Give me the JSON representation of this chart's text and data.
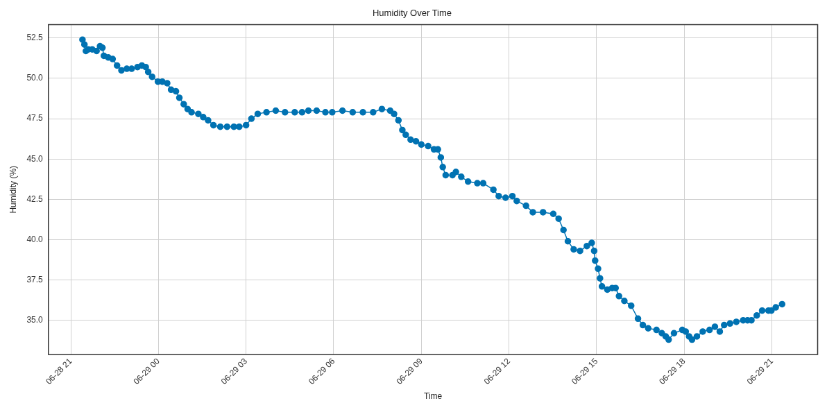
{
  "chart_data": {
    "type": "line",
    "title": "Humidity Over Time",
    "xlabel": "Time",
    "ylabel": "Humidity (%)",
    "x": [
      "--06-28T21:24",
      "--06-28T21:28",
      "--06-28T21:31",
      "--06-28T21:36",
      "--06-28T21:44",
      "--06-28T21:53",
      "--06-28T22:00",
      "--06-28T22:05",
      "--06-28T22:08",
      "--06-28T22:17",
      "--06-28T22:26",
      "--06-28T22:35",
      "--06-28T22:44",
      "--06-28T22:55",
      "--06-28T23:05",
      "--06-28T23:17",
      "--06-28T23:26",
      "--06-28T23:34",
      "--06-28T23:39",
      "--06-28T23:47",
      "--06-28T23:59",
      "--06-29T00:08",
      "--06-29T00:18",
      "--06-29T00:26",
      "--06-29T00:36",
      "--06-29T00:43",
      "--06-29T00:52",
      "--06-29T01:00",
      "--06-29T01:08",
      "--06-29T01:22",
      "--06-29T01:32",
      "--06-29T01:42",
      "--06-29T01:53",
      "--06-29T02:07",
      "--06-29T02:21",
      "--06-29T02:35",
      "--06-29T02:46",
      "--06-29T03:00",
      "--06-29T03:11",
      "--06-29T03:24",
      "--06-29T03:42",
      "--06-29T04:01",
      "--06-29T04:20",
      "--06-29T04:40",
      "--06-29T04:55",
      "--06-29T05:08",
      "--06-29T05:25",
      "--06-29T05:43",
      "--06-29T05:57",
      "--06-29T06:18",
      "--06-29T06:39",
      "--06-29T07:00",
      "--06-29T07:21",
      "--06-29T07:39",
      "--06-29T07:56",
      "--06-29T08:04",
      "--06-29T08:13",
      "--06-29T08:21",
      "--06-29T08:28",
      "--06-29T08:38",
      "--06-29T08:49",
      "--06-29T09:00",
      "--06-29T09:14",
      "--06-29T09:26",
      "--06-29T09:34",
      "--06-29T09:40",
      "--06-29T09:44",
      "--06-29T09:50",
      "--06-29T10:04",
      "--06-29T10:11",
      "--06-29T10:22",
      "--06-29T10:36",
      "--06-29T10:55",
      "--06-29T11:07",
      "--06-29T11:28",
      "--06-29T11:39",
      "--06-29T11:53",
      "--06-29T12:07",
      "--06-29T12:16",
      "--06-29T12:35",
      "--06-29T12:49",
      "--06-29T13:10",
      "--06-29T13:31",
      "--06-29T13:42",
      "--06-29T13:52",
      "--06-29T14:01",
      "--06-29T14:13",
      "--06-29T14:26",
      "--06-29T14:40",
      "--06-29T14:50",
      "--06-29T14:55",
      "--06-29T14:57",
      "--06-29T15:03",
      "--06-29T15:07",
      "--06-29T15:11",
      "--06-29T15:22",
      "--06-29T15:32",
      "--06-29T15:39",
      "--06-29T15:46",
      "--06-29T15:57",
      "--06-29T16:11",
      "--06-29T16:25",
      "--06-29T16:35",
      "--06-29T16:46",
      "--06-29T17:03",
      "--06-29T17:14",
      "--06-29T17:22",
      "--06-29T17:28",
      "--06-29T17:39",
      "--06-29T17:56",
      "--06-29T18:03",
      "--06-29T18:10",
      "--06-29T18:16",
      "--06-29T18:26",
      "--06-29T18:38",
      "--06-29T18:52",
      "--06-29T19:03",
      "--06-29T19:13",
      "--06-29T19:22",
      "--06-29T19:34",
      "--06-29T19:47",
      "--06-29T20:01",
      "--06-29T20:10",
      "--06-29T20:18",
      "--06-29T20:29",
      "--06-29T20:40",
      "--06-29T20:53",
      "--06-29T20:59",
      "--06-29T21:08",
      "--06-29T21:21"
    ],
    "series": [
      {
        "color": "#0072b2",
        "values": [
          52.4,
          52.1,
          51.7,
          51.8,
          51.8,
          51.7,
          52.0,
          51.9,
          51.4,
          51.3,
          51.2,
          50.8,
          50.5,
          50.6,
          50.6,
          50.7,
          50.8,
          50.7,
          50.4,
          50.1,
          49.8,
          49.8,
          49.7,
          49.3,
          49.2,
          48.8,
          48.4,
          48.1,
          47.9,
          47.8,
          47.6,
          47.4,
          47.1,
          47.0,
          47.0,
          47.0,
          47.0,
          47.1,
          47.5,
          47.8,
          47.9,
          48.0,
          47.9,
          47.9,
          47.9,
          48.0,
          48.0,
          47.9,
          47.9,
          48.0,
          47.9,
          47.9,
          47.9,
          48.1,
          48.0,
          47.8,
          47.4,
          46.8,
          46.5,
          46.2,
          46.1,
          45.9,
          45.8,
          45.6,
          45.6,
          45.1,
          44.5,
          44.0,
          44.0,
          44.2,
          43.9,
          43.6,
          43.5,
          43.5,
          43.1,
          42.7,
          42.6,
          42.7,
          42.4,
          42.1,
          41.7,
          41.7,
          41.6,
          41.3,
          40.6,
          39.9,
          39.4,
          39.3,
          39.6,
          39.8,
          39.3,
          38.7,
          38.2,
          37.6,
          37.1,
          36.9,
          37.0,
          37.0,
          36.5,
          36.2,
          35.9,
          35.1,
          34.7,
          34.5,
          34.4,
          34.2,
          34.0,
          33.8,
          34.2,
          34.4,
          34.3,
          34.0,
          33.8,
          34.0,
          34.3,
          34.4,
          34.6,
          34.3,
          34.7,
          34.8,
          34.9,
          35.0,
          35.0,
          35.0,
          35.3,
          35.6,
          35.6,
          35.6,
          35.8,
          36.0
        ]
      }
    ],
    "xlim": [
      "--06-28T20:14",
      "--06-29T22:34"
    ],
    "ylim": [
      32.88,
      53.33
    ],
    "xticks": [
      {
        "value": "--06-28T21:00",
        "label": "06-28 21"
      },
      {
        "value": "--06-29T00:00",
        "label": "06-29 00"
      },
      {
        "value": "--06-29T03:00",
        "label": "06-29 03"
      },
      {
        "value": "--06-29T06:00",
        "label": "06-29 06"
      },
      {
        "value": "--06-29T09:00",
        "label": "06-29 09"
      },
      {
        "value": "--06-29T12:00",
        "label": "06-29 12"
      },
      {
        "value": "--06-29T15:00",
        "label": "06-29 15"
      },
      {
        "value": "--06-29T18:00",
        "label": "06-29 18"
      },
      {
        "value": "--06-29T21:00",
        "label": "06-29 21"
      }
    ],
    "yticks": [
      {
        "value": 35,
        "label": "35.0"
      },
      {
        "value": 37.5,
        "label": "37.5"
      },
      {
        "value": 40,
        "label": "40.0"
      },
      {
        "value": 42.5,
        "label": "42.5"
      },
      {
        "value": 45,
        "label": "45.0"
      },
      {
        "value": 47.5,
        "label": "47.5"
      },
      {
        "value": 50,
        "label": "50.0"
      },
      {
        "value": 52.5,
        "label": "52.5"
      }
    ],
    "grid": true,
    "legend": false,
    "marker": "circle",
    "line_style": "solid"
  }
}
